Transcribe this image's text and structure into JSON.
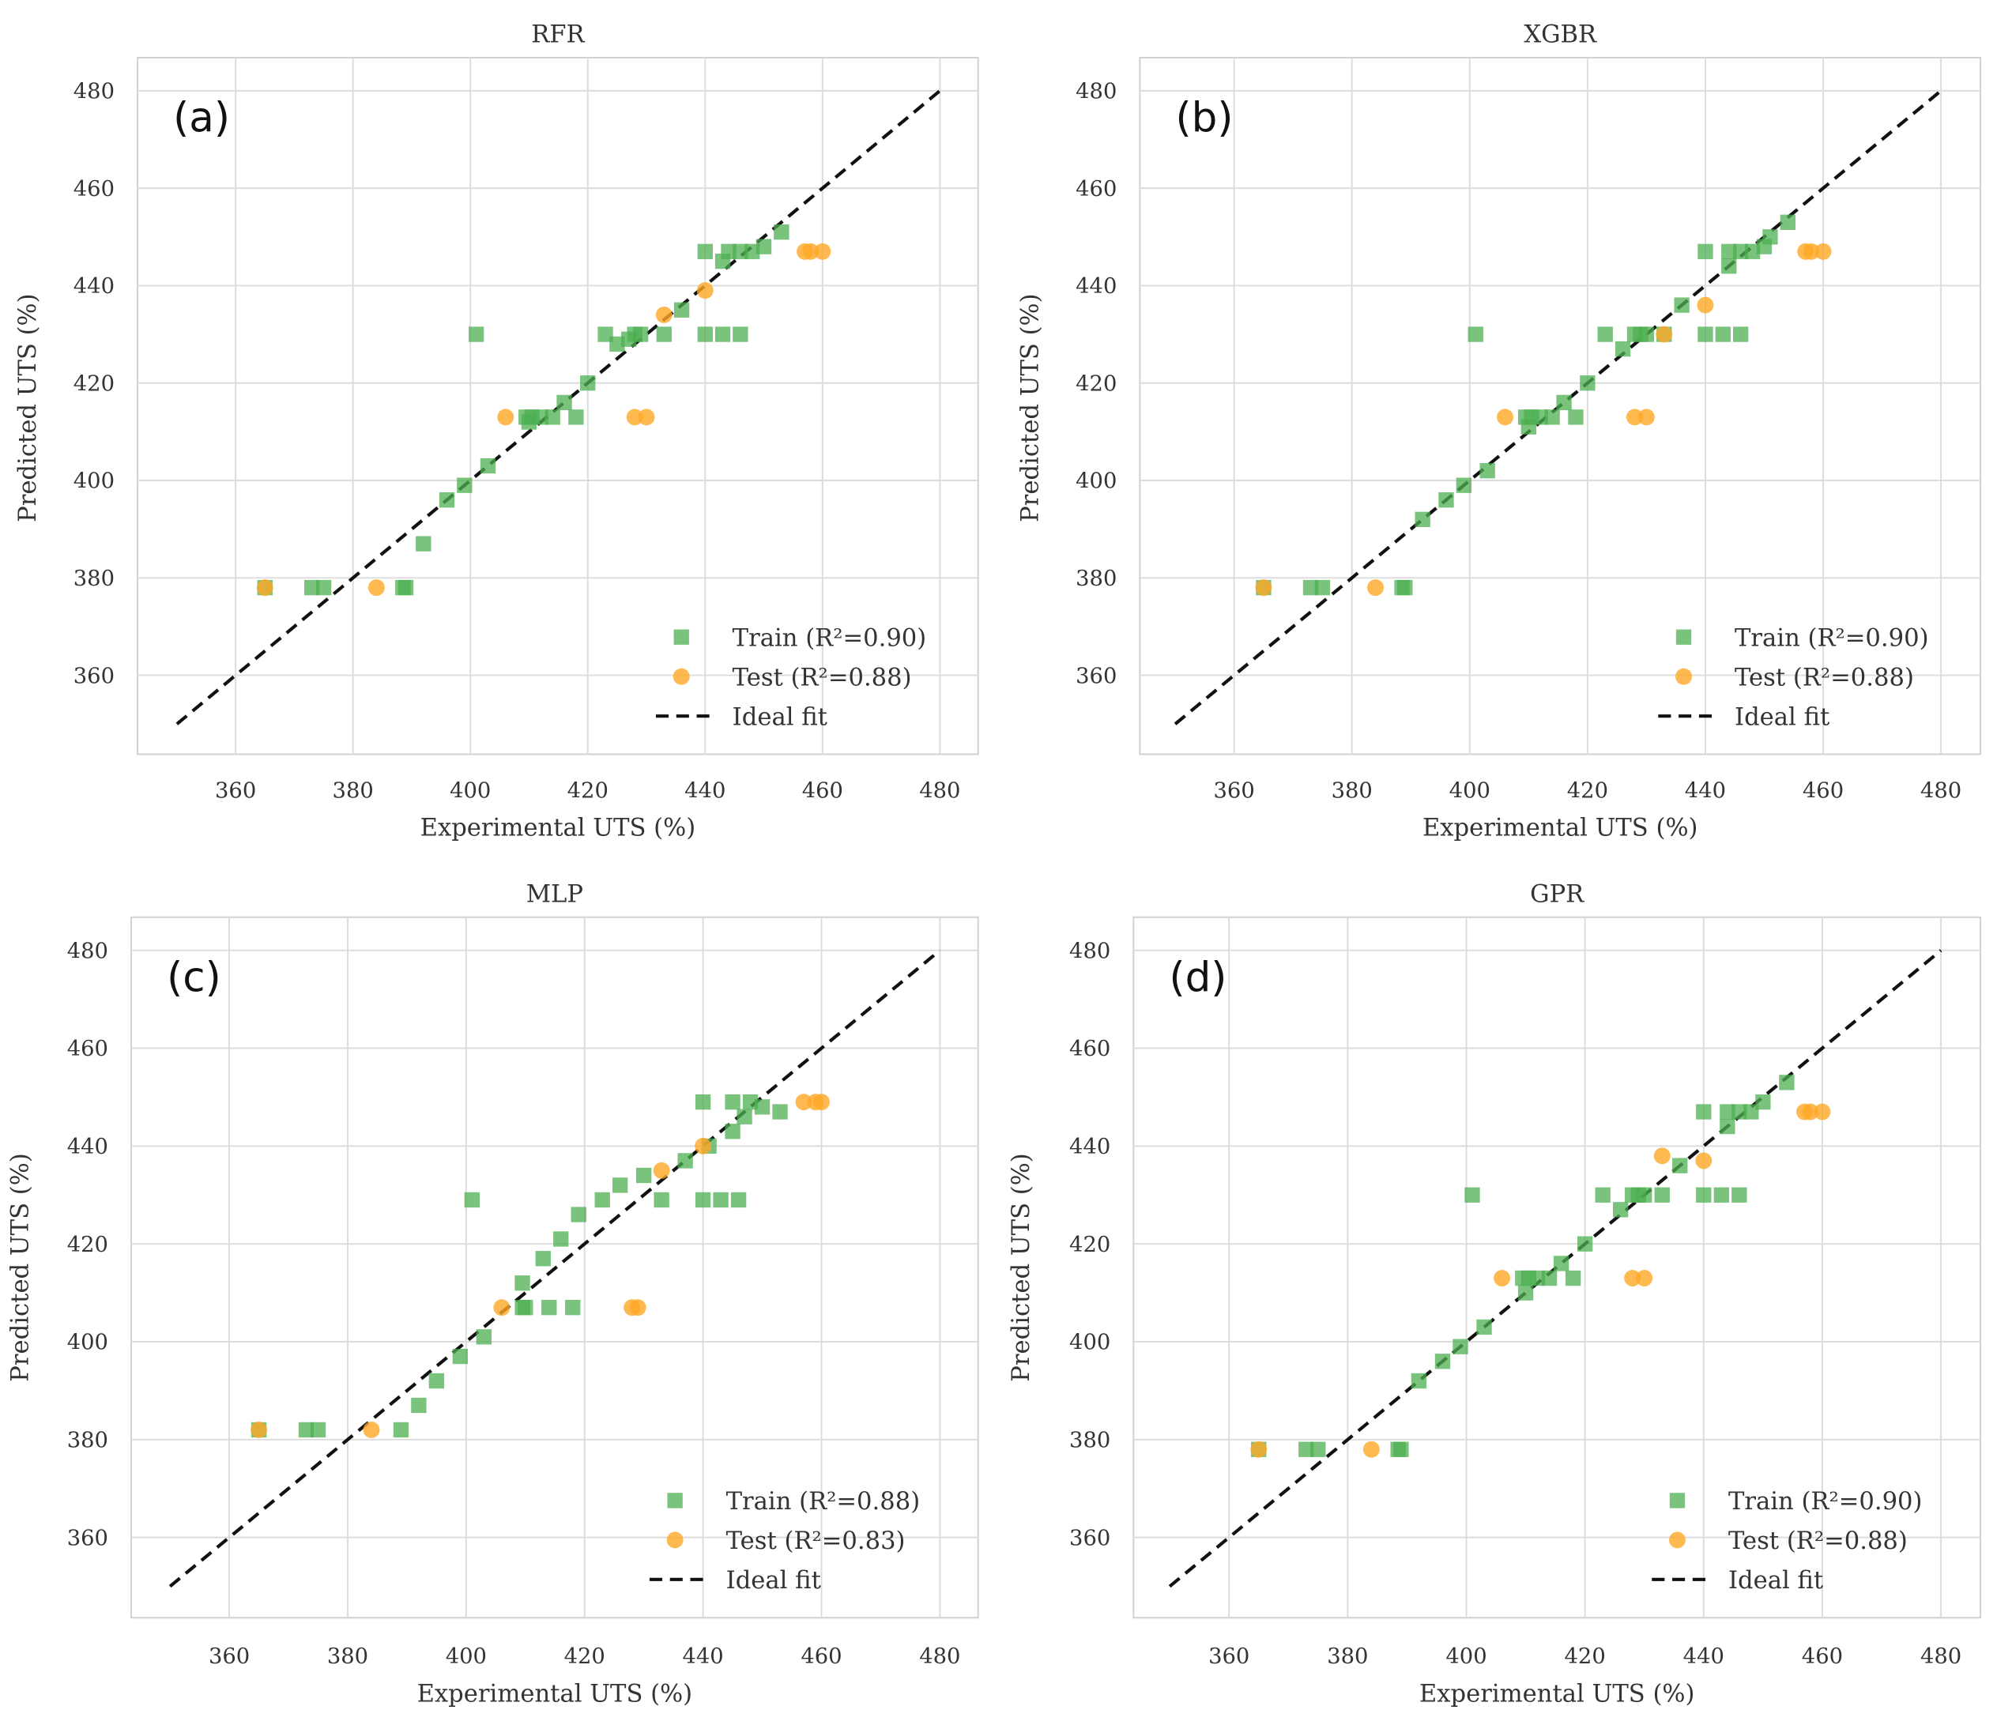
{
  "chart_data": [
    {
      "type": "scatter",
      "panel_label": "(a)",
      "title": "RFR",
      "xlabel": "Experimental UTS (%)",
      "ylabel": "Predicted UTS (%)",
      "xlim": [
        345,
        485
      ],
      "ylim": [
        347,
        487
      ],
      "xticks": [
        360,
        380,
        400,
        420,
        440,
        460,
        480
      ],
      "yticks": [
        360,
        380,
        400,
        420,
        440,
        460,
        480
      ],
      "grid": true,
      "legend_position": "bottom-right",
      "series": [
        {
          "name": "Train (R²=0.90)",
          "marker": "square",
          "color": "#4caf50",
          "points": [
            [
              365,
              378
            ],
            [
              373,
              378
            ],
            [
              375,
              378
            ],
            [
              388.5,
              378
            ],
            [
              389,
              378
            ],
            [
              392,
              387
            ],
            [
              396,
              396
            ],
            [
              399,
              399
            ],
            [
              403,
              403
            ],
            [
              401,
              430
            ],
            [
              409.5,
              413
            ],
            [
              410,
              412
            ],
            [
              410.5,
              413
            ],
            [
              412,
              413
            ],
            [
              414,
              413
            ],
            [
              416,
              416
            ],
            [
              418,
              413
            ],
            [
              420,
              420
            ],
            [
              423,
              430
            ],
            [
              425,
              428
            ],
            [
              427,
              429
            ],
            [
              428,
              430
            ],
            [
              429,
              430
            ],
            [
              433,
              430
            ],
            [
              436,
              435
            ],
            [
              440,
              447
            ],
            [
              440,
              430
            ],
            [
              443,
              430
            ],
            [
              446,
              430
            ],
            [
              443,
              445
            ],
            [
              444,
              447
            ],
            [
              446,
              447
            ],
            [
              448,
              447
            ],
            [
              450,
              448
            ],
            [
              453,
              451
            ]
          ]
        },
        {
          "name": "Test (R²=0.88)",
          "marker": "circle",
          "color": "#ffa726",
          "points": [
            [
              365,
              378
            ],
            [
              384,
              378
            ],
            [
              406,
              413
            ],
            [
              428,
              413
            ],
            [
              430,
              413
            ],
            [
              433,
              434
            ],
            [
              440,
              439
            ],
            [
              457,
              447
            ],
            [
              458,
              447
            ],
            [
              460,
              447
            ]
          ]
        }
      ],
      "ideal_fit": {
        "name": "Ideal fit",
        "from": 350,
        "to": 480
      }
    },
    {
      "type": "scatter",
      "panel_label": "(b)",
      "title": "XGBR",
      "xlabel": "Experimental UTS (%)",
      "ylabel": "Predicted UTS (%)",
      "xlim": [
        345,
        485
      ],
      "ylim": [
        347,
        487
      ],
      "xticks": [
        360,
        380,
        400,
        420,
        440,
        460,
        480
      ],
      "yticks": [
        360,
        380,
        400,
        420,
        440,
        460,
        480
      ],
      "grid": true,
      "legend_position": "bottom-right",
      "series": [
        {
          "name": "Train (R²=0.90)",
          "marker": "square",
          "color": "#4caf50",
          "points": [
            [
              365,
              378
            ],
            [
              373,
              378
            ],
            [
              375,
              378
            ],
            [
              388.5,
              378
            ],
            [
              389,
              378
            ],
            [
              392,
              392
            ],
            [
              396,
              396
            ],
            [
              399,
              399
            ],
            [
              403,
              402
            ],
            [
              401,
              430
            ],
            [
              409.5,
              413
            ],
            [
              410,
              411
            ],
            [
              410.5,
              413
            ],
            [
              412,
              413
            ],
            [
              414,
              413
            ],
            [
              416,
              416
            ],
            [
              418,
              413
            ],
            [
              420,
              420
            ],
            [
              423,
              430
            ],
            [
              426,
              427
            ],
            [
              428,
              430
            ],
            [
              429,
              430
            ],
            [
              430,
              430
            ],
            [
              433,
              430
            ],
            [
              436,
              436
            ],
            [
              440,
              447
            ],
            [
              440,
              430
            ],
            [
              443,
              430
            ],
            [
              446,
              430
            ],
            [
              444,
              444
            ],
            [
              444,
              447
            ],
            [
              446,
              447
            ],
            [
              448,
              447
            ],
            [
              450,
              448
            ],
            [
              451,
              450
            ],
            [
              454,
              453
            ]
          ]
        },
        {
          "name": "Test (R²=0.88)",
          "marker": "circle",
          "color": "#ffa726",
          "points": [
            [
              365,
              378
            ],
            [
              384,
              378
            ],
            [
              406,
              413
            ],
            [
              428,
              413
            ],
            [
              430,
              413
            ],
            [
              433,
              430
            ],
            [
              440,
              436
            ],
            [
              457,
              447
            ],
            [
              458,
              447
            ],
            [
              460,
              447
            ]
          ]
        }
      ],
      "ideal_fit": {
        "name": "Ideal fit",
        "from": 350,
        "to": 480
      }
    },
    {
      "type": "scatter",
      "panel_label": "(c)",
      "title": "MLP",
      "xlabel": "Experimental UTS (%)",
      "ylabel": "Predicted UTS (%)",
      "xlim": [
        345,
        485
      ],
      "ylim": [
        347,
        487
      ],
      "xticks": [
        360,
        380,
        400,
        420,
        440,
        460,
        480
      ],
      "yticks": [
        360,
        380,
        400,
        420,
        440,
        460,
        480
      ],
      "grid": true,
      "legend_position": "bottom-right",
      "series": [
        {
          "name": "Train (R²=0.88)",
          "marker": "square",
          "color": "#4caf50",
          "points": [
            [
              365,
              382
            ],
            [
              373,
              382
            ],
            [
              375,
              382
            ],
            [
              389,
              382
            ],
            [
              392,
              387
            ],
            [
              395,
              392
            ],
            [
              399,
              397
            ],
            [
              403,
              401
            ],
            [
              409.5,
              407
            ],
            [
              410,
              407
            ],
            [
              409.5,
              412
            ],
            [
              413,
              417
            ],
            [
              416,
              421
            ],
            [
              419,
              426
            ],
            [
              401,
              429
            ],
            [
              423,
              429
            ],
            [
              426,
              432
            ],
            [
              430,
              434
            ],
            [
              433,
              429
            ],
            [
              414,
              407
            ],
            [
              418,
              407
            ],
            [
              437,
              437
            ],
            [
              440,
              449
            ],
            [
              445,
              449
            ],
            [
              448,
              449
            ],
            [
              440,
              429
            ],
            [
              443,
              429
            ],
            [
              446,
              429
            ],
            [
              441,
              440
            ],
            [
              445,
              443
            ],
            [
              447,
              446
            ],
            [
              450,
              448
            ],
            [
              453,
              447
            ]
          ]
        },
        {
          "name": "Test (R²=0.83)",
          "marker": "circle",
          "color": "#ffa726",
          "points": [
            [
              365,
              382
            ],
            [
              384,
              382
            ],
            [
              406,
              407
            ],
            [
              428,
              407
            ],
            [
              429,
              407
            ],
            [
              433,
              435
            ],
            [
              440,
              440
            ],
            [
              457,
              449
            ],
            [
              459,
              449
            ],
            [
              460,
              449
            ]
          ]
        }
      ],
      "ideal_fit": {
        "name": "Ideal fit",
        "from": 350,
        "to": 480
      }
    },
    {
      "type": "scatter",
      "panel_label": "(d)",
      "title": "GPR",
      "xlabel": "Experimental UTS (%)",
      "ylabel": "Predicted UTS (%)",
      "xlim": [
        345,
        485
      ],
      "ylim": [
        347,
        487
      ],
      "xticks": [
        360,
        380,
        400,
        420,
        440,
        460,
        480
      ],
      "yticks": [
        360,
        380,
        400,
        420,
        440,
        460,
        480
      ],
      "grid": true,
      "legend_position": "bottom-right",
      "series": [
        {
          "name": "Train (R²=0.90)",
          "marker": "square",
          "color": "#4caf50",
          "points": [
            [
              365,
              378
            ],
            [
              373,
              378
            ],
            [
              375,
              378
            ],
            [
              388.5,
              378
            ],
            [
              389,
              378
            ],
            [
              392,
              392
            ],
            [
              396,
              396
            ],
            [
              399,
              399
            ],
            [
              403,
              403
            ],
            [
              401,
              430
            ],
            [
              409.5,
              413
            ],
            [
              410,
              410
            ],
            [
              410.5,
              413
            ],
            [
              412,
              413
            ],
            [
              414,
              413
            ],
            [
              416,
              416
            ],
            [
              418,
              413
            ],
            [
              420,
              420
            ],
            [
              423,
              430
            ],
            [
              426,
              427
            ],
            [
              428,
              430
            ],
            [
              429,
              430
            ],
            [
              430,
              430
            ],
            [
              433,
              430
            ],
            [
              436,
              436
            ],
            [
              440,
              447
            ],
            [
              440,
              430
            ],
            [
              443,
              430
            ],
            [
              446,
              430
            ],
            [
              444,
              444
            ],
            [
              444,
              447
            ],
            [
              446,
              447
            ],
            [
              448,
              447
            ],
            [
              450,
              449
            ],
            [
              454,
              453
            ]
          ]
        },
        {
          "name": "Test (R²=0.88)",
          "marker": "circle",
          "color": "#ffa726",
          "points": [
            [
              365,
              378
            ],
            [
              384,
              378
            ],
            [
              406,
              413
            ],
            [
              428,
              413
            ],
            [
              430,
              413
            ],
            [
              433,
              438
            ],
            [
              440,
              437
            ],
            [
              457,
              447
            ],
            [
              458,
              447
            ],
            [
              460,
              447
            ]
          ]
        }
      ],
      "ideal_fit": {
        "name": "Ideal fit",
        "from": 350,
        "to": 480
      }
    }
  ]
}
